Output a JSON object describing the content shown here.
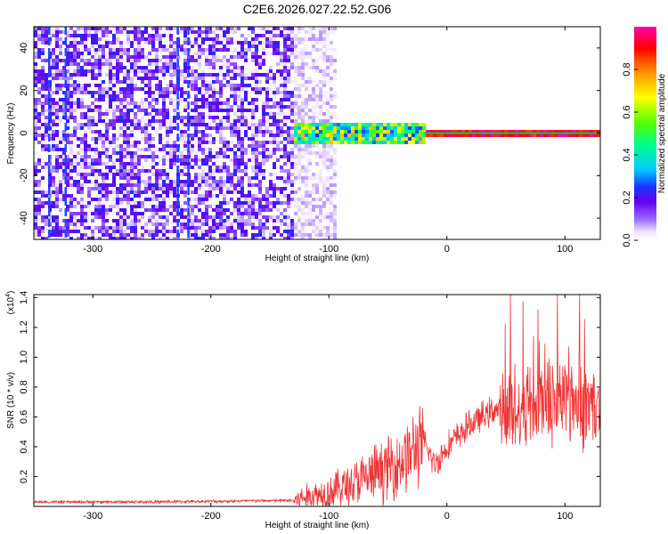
{
  "title": "C2E6.2026.027.22.52.G06",
  "colors": {
    "snr_line": "#ee3333",
    "ridge": "#00cc55",
    "axis": "#000000"
  },
  "chart_data": [
    {
      "type": "heatmap",
      "name": "spectrogram",
      "xlabel": "Height of straight line (km)",
      "ylabel": "Frequency (Hz)",
      "xlim": [
        -350,
        130
      ],
      "ylim": [
        -50,
        50
      ],
      "xticks": [
        -300,
        -200,
        -100,
        0,
        100
      ],
      "xtick_labels": [
        "-300",
        "-200",
        "-100",
        "0",
        "100"
      ],
      "yticks": [
        -40,
        -20,
        0,
        20,
        40
      ],
      "ytick_labels": [
        "-40",
        "-20",
        "0",
        "20",
        "40"
      ],
      "colorbar": {
        "label": "Normalized spectral amplitude",
        "range": [
          0,
          1
        ],
        "ticks": [
          0.0,
          0.2,
          0.4,
          0.6,
          0.8
        ],
        "tick_labels": [
          "0.0",
          "0.2",
          "0.4",
          "0.6",
          "0.8"
        ]
      },
      "regions": [
        {
          "x_range": [
            -350,
            -130
          ],
          "y_range": [
            -50,
            50
          ],
          "level": 0.15,
          "description": "broadband noise"
        },
        {
          "x_range": [
            -130,
            -95
          ],
          "y_range": [
            -50,
            50
          ],
          "level": 0.05,
          "description": "fading noise"
        },
        {
          "x_range": [
            -130,
            -20
          ],
          "y_range": [
            -4,
            6
          ],
          "level": 0.5,
          "description": "signal band"
        },
        {
          "x_range": [
            -20,
            130
          ],
          "y_range": [
            -1,
            2
          ],
          "level": 1.0,
          "description": "narrow tone"
        }
      ],
      "stripes_x": [
        -337,
        -323,
        -228,
        -219
      ]
    },
    {
      "type": "line",
      "name": "snr",
      "xlabel": "Height of straight line (km)",
      "ylabel": "SNR (10 * v/v)",
      "ylabel_multiplier": "(x10^4)",
      "multiplier_text": "(x10",
      "multiplier_exp": "4",
      "multiplier_close": ")",
      "xlim": [
        -350,
        130
      ],
      "ylim": [
        0,
        1.42
      ],
      "xticks": [
        -300,
        -200,
        -100,
        0,
        100
      ],
      "xtick_labels": [
        "-300",
        "-200",
        "-100",
        "0",
        "100"
      ],
      "yticks": [
        0.2,
        0.4,
        0.6,
        0.8,
        1.0,
        1.2,
        1.4
      ],
      "ytick_labels": [
        "0.2",
        "0.4",
        "0.6",
        "0.8",
        "1.0",
        "1.2",
        "1.4"
      ],
      "series": [
        {
          "name": "SNR",
          "x": [
            -350,
            -250,
            -130,
            -100,
            -70,
            -40,
            -20,
            -10,
            0,
            20,
            40,
            50,
            80,
            100,
            130
          ],
          "values": [
            0.03,
            0.03,
            0.04,
            0.1,
            0.18,
            0.3,
            0.43,
            0.28,
            0.4,
            0.55,
            0.65,
            0.62,
            0.72,
            0.74,
            0.65
          ]
        }
      ]
    }
  ]
}
